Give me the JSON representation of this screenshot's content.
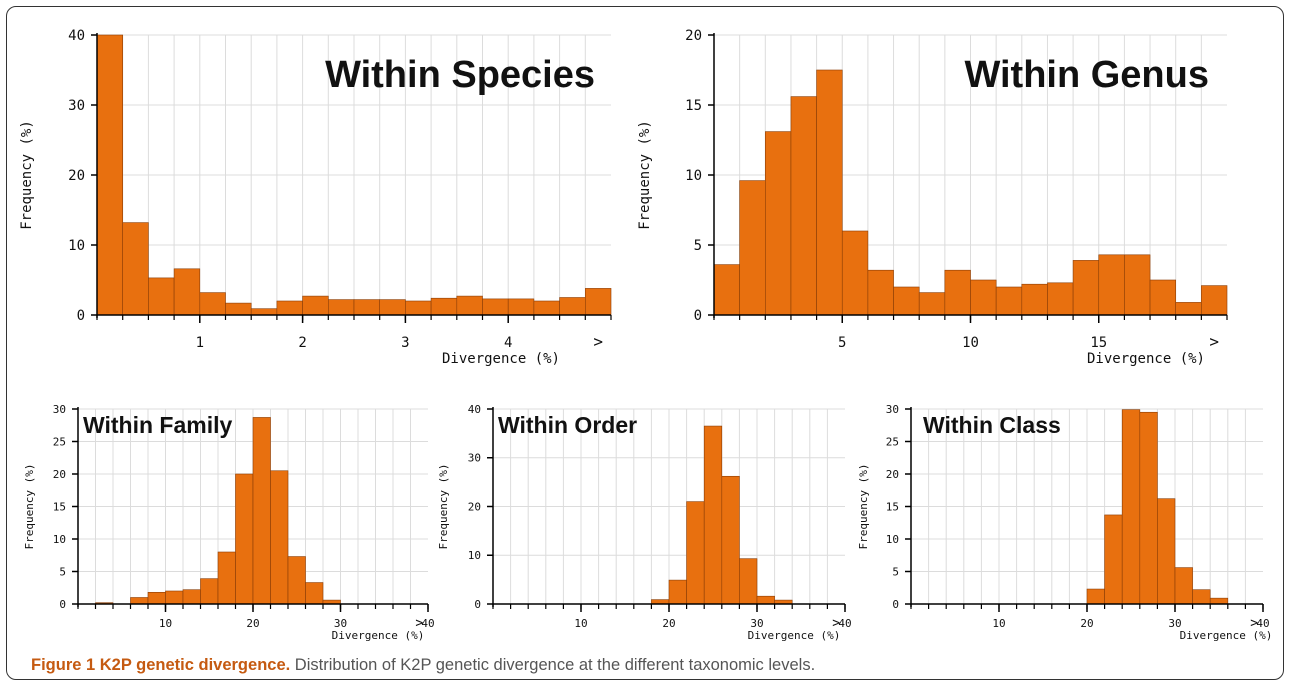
{
  "colors": {
    "bar": "#e8700f",
    "bar_edge": "#8a3d05",
    "axis": "#000000",
    "grid": "#dcdcdc",
    "caption_label": "#c55a11"
  },
  "chart_data": [
    {
      "type": "bar",
      "title": "Within Species",
      "xlabel": "Divergence (%)",
      "ylabel": "Frequency (%)",
      "ylim": [
        0,
        40
      ],
      "yticks": [
        0,
        10,
        20,
        30,
        40
      ],
      "x_unit_ticks": [
        1,
        2,
        3,
        4
      ],
      "overflow_label": ">",
      "bin_width": 0.25,
      "x_start": 0,
      "values": [
        40,
        13.2,
        5.3,
        6.6,
        3.2,
        1.7,
        0.9,
        2.0,
        2.7,
        2.2,
        2.2,
        2.2,
        2.0,
        2.4,
        2.7,
        2.3,
        2.3,
        2.0,
        2.5,
        3.8
      ],
      "grid": true
    },
    {
      "type": "bar",
      "title": "Within Genus",
      "xlabel": "Divergence (%)",
      "ylabel": "Frequency (%)",
      "ylim": [
        0,
        20
      ],
      "yticks": [
        0,
        5,
        10,
        15,
        20
      ],
      "x_unit_ticks": [
        5,
        10,
        15
      ],
      "overflow_label": ">",
      "bin_width": 1,
      "x_start": 0,
      "values": [
        3.6,
        9.6,
        13.1,
        15.6,
        17.5,
        6.0,
        3.2,
        2.0,
        1.6,
        3.2,
        2.5,
        2.0,
        2.2,
        2.3,
        3.9,
        4.3,
        4.3,
        2.5,
        0.9,
        2.1
      ],
      "grid": true
    },
    {
      "type": "bar",
      "title": "Within Family",
      "xlabel": "Divergence (%)",
      "ylabel": "Frequency (%)",
      "ylim": [
        0,
        30
      ],
      "yticks": [
        0,
        5,
        10,
        15,
        20,
        25,
        30
      ],
      "x_unit_ticks": [
        10,
        20,
        30,
        40
      ],
      "overflow_label": ">",
      "bin_width": 2,
      "x_start": 0,
      "values": [
        0,
        0.2,
        0,
        1.0,
        1.8,
        2.0,
        2.2,
        3.9,
        8.0,
        20.0,
        28.7,
        20.5,
        7.3,
        3.3,
        0.6,
        0,
        0,
        0,
        0,
        0
      ],
      "grid": true
    },
    {
      "type": "bar",
      "title": "Within Order",
      "xlabel": "Divergence (%)",
      "ylabel": "Frequency (%)",
      "ylim": [
        0,
        40
      ],
      "yticks": [
        0,
        10,
        20,
        30,
        40
      ],
      "x_unit_ticks": [
        10,
        20,
        30,
        40
      ],
      "overflow_label": ">",
      "bin_width": 2,
      "x_start": 0,
      "values": [
        0,
        0,
        0,
        0,
        0,
        0,
        0,
        0,
        0,
        0.9,
        4.9,
        21.0,
        36.5,
        26.2,
        9.3,
        1.6,
        0.8,
        0,
        0,
        0
      ],
      "grid": true
    },
    {
      "type": "bar",
      "title": "Within Class",
      "xlabel": "Divergence (%)",
      "ylabel": "Frequency (%)",
      "ylim": [
        0,
        30
      ],
      "yticks": [
        0,
        5,
        10,
        15,
        20,
        25,
        30
      ],
      "x_unit_ticks": [
        10,
        20,
        30,
        40
      ],
      "overflow_label": ">",
      "bin_width": 2,
      "x_start": 0,
      "values": [
        0,
        0,
        0,
        0,
        0,
        0,
        0,
        0,
        0,
        0,
        2.3,
        13.7,
        29.9,
        29.5,
        16.2,
        5.6,
        2.2,
        0.9,
        0,
        0
      ],
      "grid": true
    }
  ],
  "caption": {
    "label": "Figure 1 K2P genetic divergence.",
    "text": " Distribution of K2P genetic divergence at the different taxonomic levels."
  }
}
